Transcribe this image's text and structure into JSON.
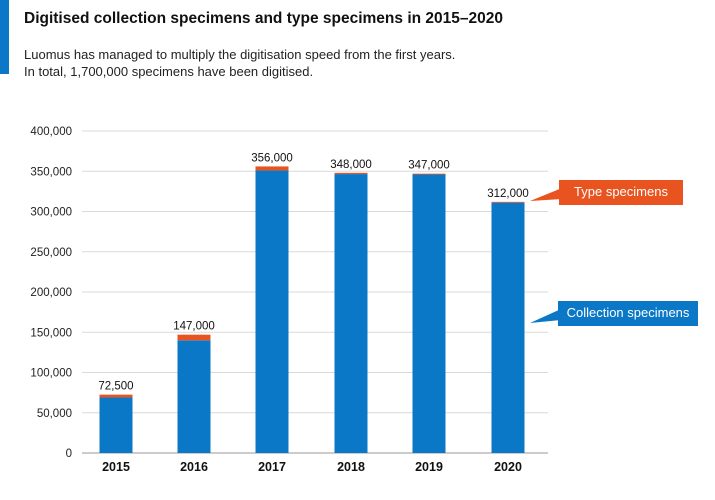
{
  "header": {
    "title": "Digitised collection specimens and type specimens in 2015–2020",
    "subtitle_lines": [
      "Luomus has managed to multiply the digitisation speed from the first years.",
      "In total, 1,700,000 specimens have been digitised."
    ]
  },
  "colors": {
    "accent": "#0a78c6",
    "collection": "#0a78c6",
    "type": "#e8531f",
    "grid": "#d9d9d9"
  },
  "chart_data": {
    "type": "bar",
    "stacked": true,
    "categories": [
      "2015",
      "2016",
      "2017",
      "2018",
      "2019",
      "2020"
    ],
    "series": [
      {
        "name": "Collection specimens",
        "values": [
          69000,
          140000,
          351000,
          346500,
          346000,
          311000
        ]
      },
      {
        "name": "Type specimens",
        "values": [
          3500,
          7000,
          5000,
          1500,
          1000,
          1000
        ]
      }
    ],
    "totals_labels": [
      "72,500",
      "147,000",
      "356,000",
      "348,000",
      "347,000",
      "312,000"
    ],
    "ylim": [
      0,
      400000
    ],
    "yticks": [
      0,
      50000,
      100000,
      150000,
      200000,
      250000,
      300000,
      350000,
      400000
    ],
    "ytick_labels": [
      "0",
      "50,000",
      "100,000",
      "150,000",
      "200,000",
      "250,000",
      "300,000",
      "350,000",
      "400,000"
    ],
    "grid": true,
    "legend": "right-side callouts"
  },
  "callouts": {
    "type": "Type specimens",
    "collection": "Collection specimens"
  }
}
